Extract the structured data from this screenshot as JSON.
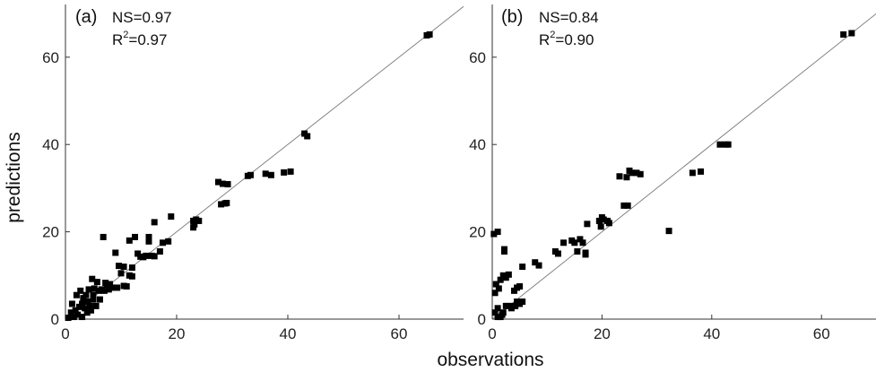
{
  "chart_data": [
    {
      "type": "scatter",
      "panel_label": "(a)",
      "annotations": {
        "ns_label": "NS=0.97",
        "r2_prefix": "R",
        "r2_sup": "2",
        "r2_value": "=0.97"
      },
      "xlim": [
        0,
        70
      ],
      "ylim": [
        0,
        70
      ],
      "xticks": [
        0,
        20,
        40,
        60
      ],
      "yticks": [
        0,
        20,
        40,
        60
      ],
      "grid": false,
      "reference_line": "1:1",
      "marker_color": "#000000",
      "line_color": "#777777",
      "points": [
        [
          0.5,
          0.3
        ],
        [
          1,
          1.5
        ],
        [
          1.2,
          3.5
        ],
        [
          1.5,
          0.5
        ],
        [
          1.8,
          2
        ],
        [
          2,
          5.5
        ],
        [
          2.2,
          1
        ],
        [
          2.5,
          2.8
        ],
        [
          2.7,
          6.5
        ],
        [
          3,
          3.5
        ],
        [
          3,
          0.5
        ],
        [
          3.2,
          4.8
        ],
        [
          3.5,
          2.5
        ],
        [
          3.7,
          5.5
        ],
        [
          3.9,
          1.5
        ],
        [
          4,
          4
        ],
        [
          4.2,
          6.8
        ],
        [
          4.4,
          3
        ],
        [
          4.6,
          2
        ],
        [
          4.8,
          9.2
        ],
        [
          5,
          4.5
        ],
        [
          5,
          5.5
        ],
        [
          5.2,
          7
        ],
        [
          5.5,
          3
        ],
        [
          5.7,
          8.5
        ],
        [
          6,
          6.5
        ],
        [
          6.2,
          4.5
        ],
        [
          6.5,
          6.8
        ],
        [
          6.8,
          18.8
        ],
        [
          7,
          6.5
        ],
        [
          7.2,
          8.3
        ],
        [
          7.5,
          7.5
        ],
        [
          7.8,
          6.8
        ],
        [
          8,
          8
        ],
        [
          8.5,
          7.2
        ],
        [
          9,
          15.2
        ],
        [
          9.3,
          7.2
        ],
        [
          9.6,
          12.2
        ],
        [
          10,
          10.5
        ],
        [
          10.5,
          12
        ],
        [
          10.5,
          7.6
        ],
        [
          11,
          7.5
        ],
        [
          11.5,
          10
        ],
        [
          11.5,
          18
        ],
        [
          12,
          11.8
        ],
        [
          12,
          9.8
        ],
        [
          12.5,
          18.8
        ],
        [
          13,
          15
        ],
        [
          13.5,
          14.3
        ],
        [
          14,
          14.2
        ],
        [
          14.5,
          14.5
        ],
        [
          15,
          18.8
        ],
        [
          15,
          17.8
        ],
        [
          15.5,
          14.5
        ],
        [
          16,
          14.4
        ],
        [
          16,
          22.2
        ],
        [
          17,
          15.5
        ],
        [
          17.5,
          17.5
        ],
        [
          18.5,
          17.8
        ],
        [
          19,
          23.5
        ],
        [
          23,
          21
        ],
        [
          23,
          22.5
        ],
        [
          23.2,
          21.7
        ],
        [
          23.5,
          22.8
        ],
        [
          24,
          22.5
        ],
        [
          27.5,
          31.4
        ],
        [
          28,
          26.3
        ],
        [
          28.3,
          31
        ],
        [
          28.7,
          26.5
        ],
        [
          29,
          26.6
        ],
        [
          29.2,
          30.9
        ],
        [
          32.8,
          32.8
        ],
        [
          33.3,
          33
        ],
        [
          36,
          33.3
        ],
        [
          37,
          33
        ],
        [
          39.3,
          33.6
        ],
        [
          40.5,
          33.8
        ],
        [
          43,
          42.5
        ],
        [
          43.5,
          41.9
        ],
        [
          65,
          65
        ],
        [
          65.5,
          65.2
        ]
      ]
    },
    {
      "type": "scatter",
      "panel_label": "(b)",
      "annotations": {
        "ns_label": "NS=0.84",
        "r2_prefix": "R",
        "r2_sup": "2",
        "r2_value": "=0.90"
      },
      "xlim": [
        0,
        70
      ],
      "ylim": [
        0,
        70
      ],
      "xticks": [
        0,
        20,
        40,
        60
      ],
      "yticks": [
        0,
        20,
        40,
        60
      ],
      "grid": false,
      "reference_line": "1:1",
      "marker_color": "#000000",
      "line_color": "#777777",
      "points": [
        [
          0.3,
          19.5
        ],
        [
          0.5,
          1.5
        ],
        [
          0.5,
          6
        ],
        [
          0.7,
          8
        ],
        [
          1,
          0.5
        ],
        [
          1,
          2.5
        ],
        [
          1,
          20
        ],
        [
          1.2,
          7
        ],
        [
          1.5,
          0.5
        ],
        [
          1.5,
          9
        ],
        [
          1.8,
          1
        ],
        [
          2,
          1.5
        ],
        [
          2,
          10
        ],
        [
          2.2,
          16
        ],
        [
          2.2,
          15.5
        ],
        [
          2.5,
          9.5
        ],
        [
          2.5,
          3
        ],
        [
          2.8,
          3
        ],
        [
          3,
          10.2
        ],
        [
          3.5,
          2.5
        ],
        [
          3.7,
          3
        ],
        [
          4,
          6.5
        ],
        [
          4.2,
          3
        ],
        [
          4.5,
          4
        ],
        [
          4.5,
          7.2
        ],
        [
          5,
          3.5
        ],
        [
          5,
          7.5
        ],
        [
          5.5,
          4
        ],
        [
          5.5,
          12
        ],
        [
          7.8,
          13
        ],
        [
          8.5,
          12.3
        ],
        [
          11.5,
          15.5
        ],
        [
          12,
          15
        ],
        [
          13,
          17.5
        ],
        [
          14.5,
          18
        ],
        [
          15,
          17.5
        ],
        [
          15.5,
          15.5
        ],
        [
          16,
          18.3
        ],
        [
          16.5,
          17.5
        ],
        [
          17,
          15.2
        ],
        [
          17,
          14.8
        ],
        [
          17.3,
          21.8
        ],
        [
          19.5,
          22.5
        ],
        [
          19.8,
          21.2
        ],
        [
          20,
          23.3
        ],
        [
          20.3,
          22.8
        ],
        [
          21,
          22.5
        ],
        [
          21.3,
          22
        ],
        [
          23.2,
          32.7
        ],
        [
          24,
          26
        ],
        [
          24.5,
          32.5
        ],
        [
          24.7,
          26
        ],
        [
          25,
          34
        ],
        [
          25.5,
          33.5
        ],
        [
          26.3,
          33.5
        ],
        [
          27,
          33.2
        ],
        [
          32.2,
          20.2
        ],
        [
          36.5,
          33.5
        ],
        [
          38,
          33.8
        ],
        [
          41.5,
          40
        ],
        [
          42.5,
          40
        ],
        [
          43,
          40
        ],
        [
          64,
          65.2
        ],
        [
          65.5,
          65.5
        ]
      ]
    }
  ],
  "axes": {
    "x_title": "observations",
    "y_title": "predictions"
  }
}
